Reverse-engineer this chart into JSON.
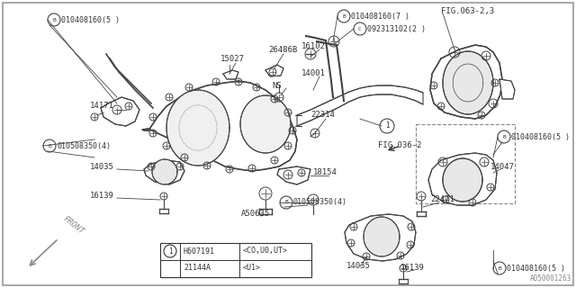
{
  "bg_color": "#ffffff",
  "line_color": "#444444",
  "text_color": "#333333",
  "diagram_ref": "A050001263",
  "labels": {
    "top_left_bolt": "B)010408160(5 )",
    "lbl_15027": "15027",
    "lbl_26486B": "26486B",
    "top_center_bolt": "B)010408160(7 )",
    "fig063": "FIG.063-2,3",
    "c_092": "C)092313102(2 )",
    "lbl_16102": "16102",
    "lbl_14001": "14001",
    "lbl_ns": "NS",
    "lbl_14171": "14171",
    "left_bolt2": "B)010508350(4)",
    "lbl_22314": "22314",
    "lbl_fig036": "FIG.036-2",
    "right_bolt_mid": "B)010408160(5 )",
    "lbl_14035_left": "14035",
    "lbl_14047": "14047",
    "lbl_18154": "18154",
    "lbl_16139_left": "16139",
    "bot_bolt": "B)010508350(4)",
    "lbl_a50635": "A50635",
    "lbl_22471": "22471",
    "lbl_14035_bot": "14035",
    "lbl_16139_bot": "16139",
    "bot_right_bolt": "B)010408160(5 )",
    "legend_h607": "H607191",
    "legend_co": "<CO,U0,UT>",
    "legend_21144": "21144A",
    "legend_u1": "<U1>"
  }
}
